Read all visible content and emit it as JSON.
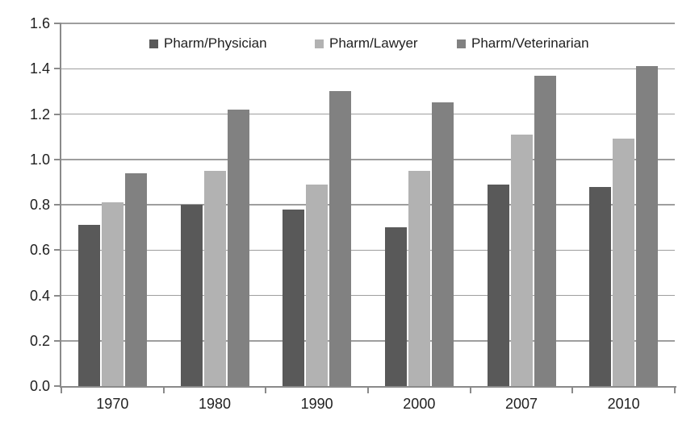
{
  "chart_data": {
    "type": "bar",
    "title": "",
    "xlabel": "",
    "ylabel": "",
    "categories": [
      "1970",
      "1980",
      "1990",
      "2000",
      "2007",
      "2010"
    ],
    "series": [
      {
        "name": "Pharm/Physician",
        "color": "#595959",
        "values": [
          0.71,
          0.8,
          0.78,
          0.7,
          0.89,
          0.88
        ]
      },
      {
        "name": "Pharm/Lawyer",
        "color": "#b2b2b2",
        "values": [
          0.81,
          0.95,
          0.89,
          0.95,
          1.11,
          1.09
        ]
      },
      {
        "name": "Pharm/Veterinarian",
        "color": "#818181",
        "values": [
          0.94,
          1.22,
          1.3,
          1.25,
          1.37,
          1.41
        ]
      }
    ],
    "ylim": [
      0,
      1.6
    ],
    "ytick_step": 0.2,
    "ytick_labels": [
      "0.0",
      "0.2",
      "0.4",
      "0.6",
      "0.8",
      "1.0",
      "1.2",
      "1.4",
      "1.6"
    ],
    "grid": true,
    "legend_position": "top-inside-horizontal"
  },
  "colors": {
    "axis": "#8a8a8a",
    "gridline": "#9e9e9e",
    "text": "#1f1f1f",
    "background": "#ffffff"
  }
}
